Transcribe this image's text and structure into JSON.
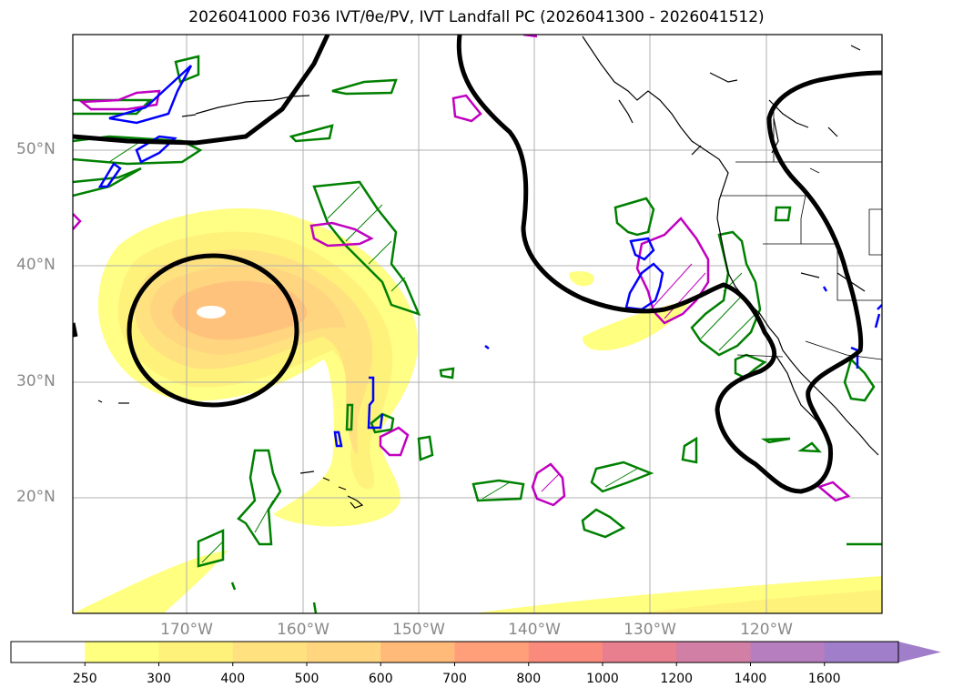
{
  "title_text": "2026041000 F036 IVT/θe/PV, IVT Landfall PC (2026041300 - 2026041512)",
  "map": {
    "lat_labels": [
      "50°N",
      "40°N",
      "30°N",
      "20°N"
    ],
    "lon_labels": [
      "170°W",
      "160°W",
      "150°W",
      "140°W",
      "130°W",
      "120°W"
    ],
    "layers": {
      "ivt_fill": "IVT shaded",
      "pc_contour": "IVT landfall PC (black)",
      "theta_e": "θe contours (green)",
      "pv_magenta": "PV contours (magenta)",
      "pv_blue": "PV contours (blue)",
      "coastlines": "coastlines & borders"
    }
  },
  "colorbar": {
    "labels": [
      "250",
      "300",
      "400",
      "500",
      "600",
      "700",
      "800",
      "1000",
      "1200",
      "1400",
      "1600"
    ],
    "colors": [
      "#ffffff",
      "#ffff80",
      "#fff27a",
      "#ffe180",
      "#ffd580",
      "#ffb979",
      "#ff9f7a",
      "#f98a7c",
      "#e87f8f",
      "#d27fa6",
      "#b67dbf",
      "#a07ec9"
    ]
  }
}
